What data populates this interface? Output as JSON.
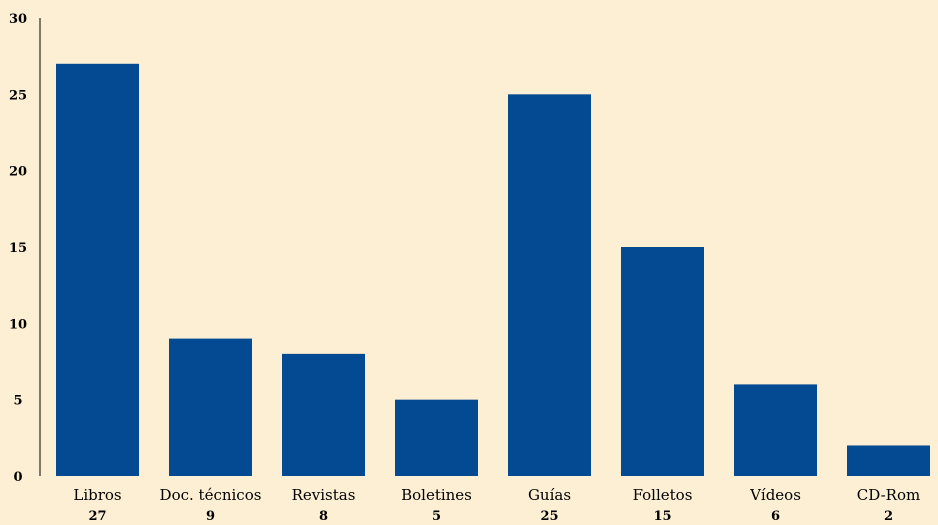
{
  "chart_data": {
    "type": "bar",
    "categories": [
      "Libros",
      "Doc. técnicos",
      "Revistas",
      "Boletines",
      "Guías",
      "Folletos",
      "Vídeos",
      "CD-Rom"
    ],
    "values": [
      27,
      9,
      8,
      5,
      25,
      15,
      6,
      2
    ],
    "value_labels": [
      "27",
      "9",
      "8",
      "5",
      "25",
      "15",
      "6",
      "2"
    ],
    "title": "",
    "xlabel": "",
    "ylabel": "",
    "ylim": [
      0,
      30
    ],
    "yticks": [
      "0",
      "5",
      "10",
      "15",
      "20",
      "25",
      "30"
    ],
    "grid": false,
    "colors": {
      "background": "#fdefd3",
      "bar": "#034a93",
      "axis": "#000000",
      "text": "#000000"
    }
  }
}
